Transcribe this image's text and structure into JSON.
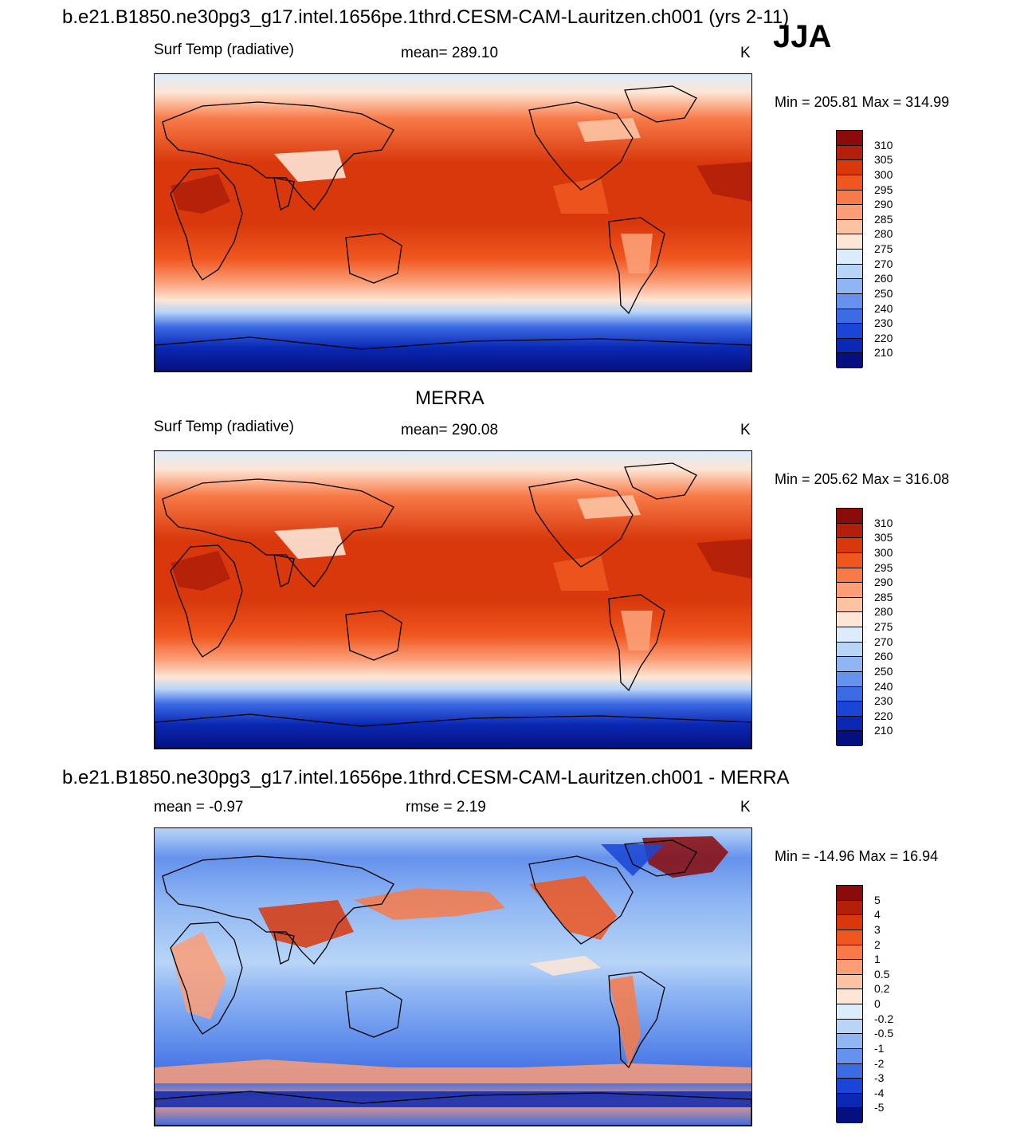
{
  "header": {
    "title": "b.e21.B1850.ne30pg3_g17.intel.1656pe.1thrd.CESM-CAM-Lauritzen.ch001 (yrs 2-11)",
    "season": "JJA"
  },
  "panels": [
    {
      "id": "model",
      "title": "",
      "variable": "Surf Temp (radiative)",
      "stat_text": "mean= 289.10",
      "units": "K",
      "minmax_text": "Min = 205.81 Max = 314.99",
      "palette": "temperature",
      "colorbar_labels": [
        "310",
        "305",
        "300",
        "295",
        "290",
        "285",
        "280",
        "275",
        "270",
        "260",
        "250",
        "240",
        "230",
        "220",
        "210"
      ]
    },
    {
      "id": "obs",
      "title": "MERRA",
      "variable": "Surf Temp (radiative)",
      "stat_text": "mean= 290.08",
      "units": "K",
      "minmax_text": "Min = 205.62 Max = 316.08",
      "palette": "temperature",
      "colorbar_labels": [
        "310",
        "305",
        "300",
        "295",
        "290",
        "285",
        "280",
        "275",
        "270",
        "260",
        "250",
        "240",
        "230",
        "220",
        "210"
      ]
    },
    {
      "id": "diff",
      "title": "b.e21.B1850.ne30pg3_g17.intel.1656pe.1thrd.CESM-CAM-Lauritzen.ch001 - MERRA",
      "variable": "mean =  -0.97",
      "stat_text": "rmse =   2.19",
      "units": "K",
      "minmax_text": "Min = -14.96 Max =  16.94",
      "palette": "difference",
      "colorbar_labels": [
        "5",
        "4",
        "3",
        "2",
        "1",
        "0.5",
        "0.2",
        "0",
        "-0.2",
        "-0.5",
        "-1",
        "-2",
        "-3",
        "-4",
        "-5"
      ]
    }
  ],
  "palettes": {
    "temperature": [
      "#8b0a0a",
      "#b31f0a",
      "#d8380c",
      "#f0561f",
      "#f87a48",
      "#fb9e77",
      "#fcc3a3",
      "#fde6d6",
      "#dcecfb",
      "#b8d5f7",
      "#8fb6f3",
      "#6592ec",
      "#3d6be4",
      "#1a45d6",
      "#0a28b3",
      "#050f80"
    ],
    "difference": [
      "#8b0a0a",
      "#b31f0a",
      "#d8380c",
      "#f0561f",
      "#f87a48",
      "#fb9e77",
      "#fcc3a3",
      "#fde6d6",
      "#dcecfb",
      "#b8d5f7",
      "#8fb6f3",
      "#6592ec",
      "#3d6be4",
      "#1a45d6",
      "#0a28b3",
      "#050f80"
    ]
  }
}
